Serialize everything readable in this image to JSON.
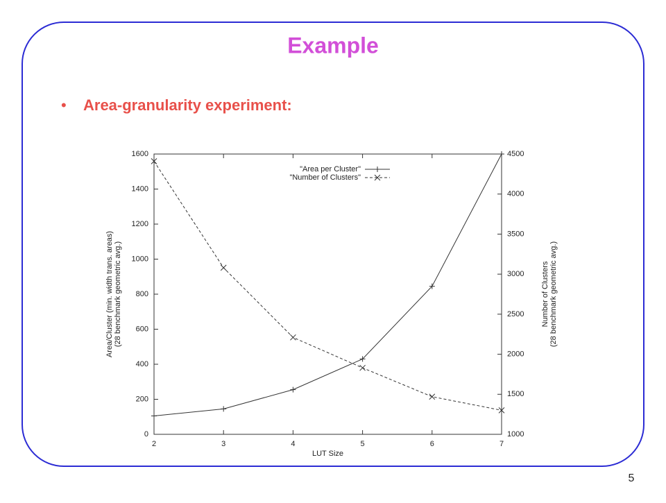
{
  "slide": {
    "title": "Example",
    "bullet": "Area-granularity experiment:",
    "page_number": "5"
  },
  "chart_data": {
    "type": "line",
    "xlabel": "LUT Size",
    "ylabel": [
      "Area/Cluster (min. width trans. areas)",
      "(28 benchmark geometric avg.)"
    ],
    "y2label": [
      "Number of Clusters",
      "(28 benchmark geometric avg.)"
    ],
    "x": [
      2,
      3,
      4,
      5,
      6,
      7
    ],
    "xlim": [
      2,
      7
    ],
    "xticks": [
      2,
      3,
      4,
      5,
      6,
      7
    ],
    "ylim": [
      0,
      1600
    ],
    "yticks": [
      0,
      200,
      400,
      600,
      800,
      1000,
      1200,
      1400,
      1600
    ],
    "y2lim": [
      1000,
      4500
    ],
    "y2ticks": [
      1000,
      1500,
      2000,
      2500,
      3000,
      3500,
      4000,
      4500
    ],
    "legend": "upper center",
    "series": [
      {
        "name": "\"Area per Cluster\"",
        "color": "#333333",
        "marker": "plus",
        "dashed": false,
        "values": [
          105,
          145,
          255,
          430,
          845,
          1600
        ]
      },
      {
        "name": "\"Number of Clusters\"",
        "color": "#333333",
        "marker": "cross",
        "dashed": true,
        "axis": "y2",
        "values": [
          4410,
          3080,
          2210,
          1830,
          1470,
          1300
        ]
      }
    ]
  }
}
